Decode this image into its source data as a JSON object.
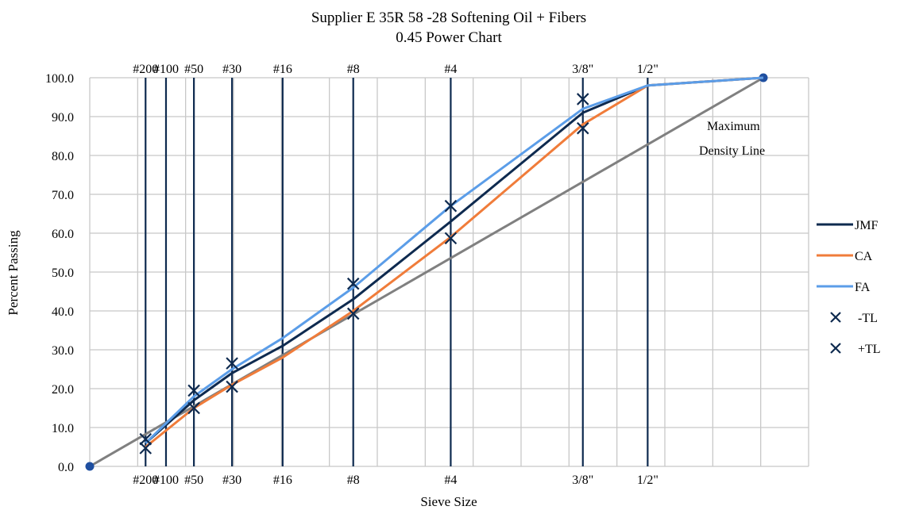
{
  "chart_data": {
    "type": "line",
    "title": "Supplier E 35R 58 -28 Softening Oil + Fibers",
    "subtitle": "0.45 Power Chart",
    "xlabel": "Sieve Size",
    "ylabel": "Percent Passing",
    "x_scale": "power_0.45",
    "x_unit": "mm",
    "xlim": [
      0,
      19.0
    ],
    "ylim": [
      0,
      100
    ],
    "y_ticks": [
      "0.0",
      "10.0",
      "20.0",
      "30.0",
      "40.0",
      "50.0",
      "60.0",
      "70.0",
      "80.0",
      "90.0",
      "100.0"
    ],
    "grid": true,
    "legend_position": "right",
    "sieves": [
      {
        "label": "#200",
        "size": 0.075
      },
      {
        "label": "#100",
        "size": 0.15
      },
      {
        "label": "#50",
        "size": 0.3
      },
      {
        "label": "#30",
        "size": 0.6
      },
      {
        "label": "#16",
        "size": 1.18
      },
      {
        "label": "#8",
        "size": 2.36
      },
      {
        "label": "#4",
        "size": 4.75
      },
      {
        "label": "3/8\"",
        "size": 9.5
      },
      {
        "label": "1/2\"",
        "size": 12.5
      }
    ],
    "series": [
      {
        "name": "JMF",
        "color": "#0e2a4f",
        "kind": "line",
        "x": [
          0.075,
          0.3,
          0.6,
          1.18,
          2.36,
          4.75,
          9.5,
          12.5,
          19.0
        ],
        "y": [
          6.0,
          17.0,
          24.0,
          31.0,
          43.0,
          63.0,
          91.0,
          98.0,
          100.0
        ]
      },
      {
        "name": "CA",
        "color": "#f07c3a",
        "kind": "line",
        "x": [
          0.075,
          0.3,
          0.6,
          1.18,
          2.36,
          4.75,
          9.5,
          12.5,
          19.0
        ],
        "y": [
          5.0,
          15.0,
          21.0,
          28.0,
          40.0,
          59.0,
          88.0,
          98.0,
          100.0
        ]
      },
      {
        "name": "FA",
        "color": "#5b9de8",
        "kind": "line",
        "x": [
          0.075,
          0.3,
          0.6,
          1.18,
          2.36,
          4.75,
          9.5,
          12.5,
          19.0
        ],
        "y": [
          6.0,
          18.0,
          25.0,
          33.0,
          46.0,
          67.0,
          92.0,
          98.0,
          100.0
        ]
      },
      {
        "name": "-TL",
        "color": "#0e2a4f",
        "kind": "marker",
        "x": [
          0.075,
          0.3,
          0.6,
          2.36,
          4.75,
          9.5
        ],
        "y": [
          4.7,
          15.0,
          20.5,
          39.3,
          58.7,
          87.0
        ]
      },
      {
        "name": "+TL",
        "color": "#0e2a4f",
        "kind": "marker",
        "x": [
          0.075,
          0.3,
          0.6,
          2.36,
          4.75,
          9.5
        ],
        "y": [
          7.0,
          19.5,
          26.5,
          47.0,
          67.0,
          94.5
        ]
      }
    ],
    "max_density_line": {
      "x": [
        0,
        19.0
      ],
      "y": [
        0,
        100
      ],
      "color": "#808080",
      "annotation": [
        "Maximum",
        "Density Line"
      ]
    }
  }
}
